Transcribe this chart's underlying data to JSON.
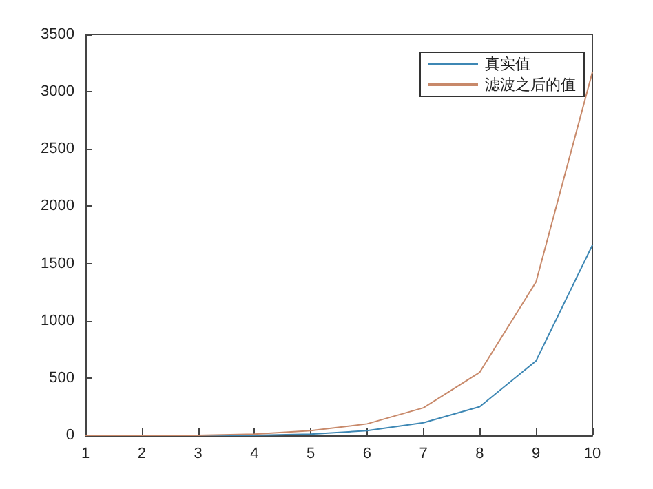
{
  "chart_data": {
    "type": "line",
    "x": [
      1,
      2,
      3,
      4,
      5,
      6,
      7,
      8,
      9,
      10
    ],
    "series": [
      {
        "name": "真实值",
        "color": "#3d87b4",
        "values": [
          0,
          0,
          0,
          0,
          10,
          40,
          110,
          250,
          650,
          1660
        ]
      },
      {
        "name": "滤波之后的值",
        "color": "#c8896a",
        "values": [
          0,
          0,
          0,
          10,
          40,
          100,
          240,
          550,
          1340,
          3170
        ]
      }
    ],
    "xlim": [
      1,
      10
    ],
    "xticks": [
      1,
      2,
      3,
      4,
      5,
      6,
      7,
      8,
      9,
      10
    ],
    "ylim": [
      0,
      3500
    ],
    "yticks": [
      0,
      500,
      1000,
      1500,
      2000,
      2500,
      3000,
      3500
    ],
    "grid": false,
    "legend": "top right",
    "marker": "none",
    "line_style": "solid"
  }
}
